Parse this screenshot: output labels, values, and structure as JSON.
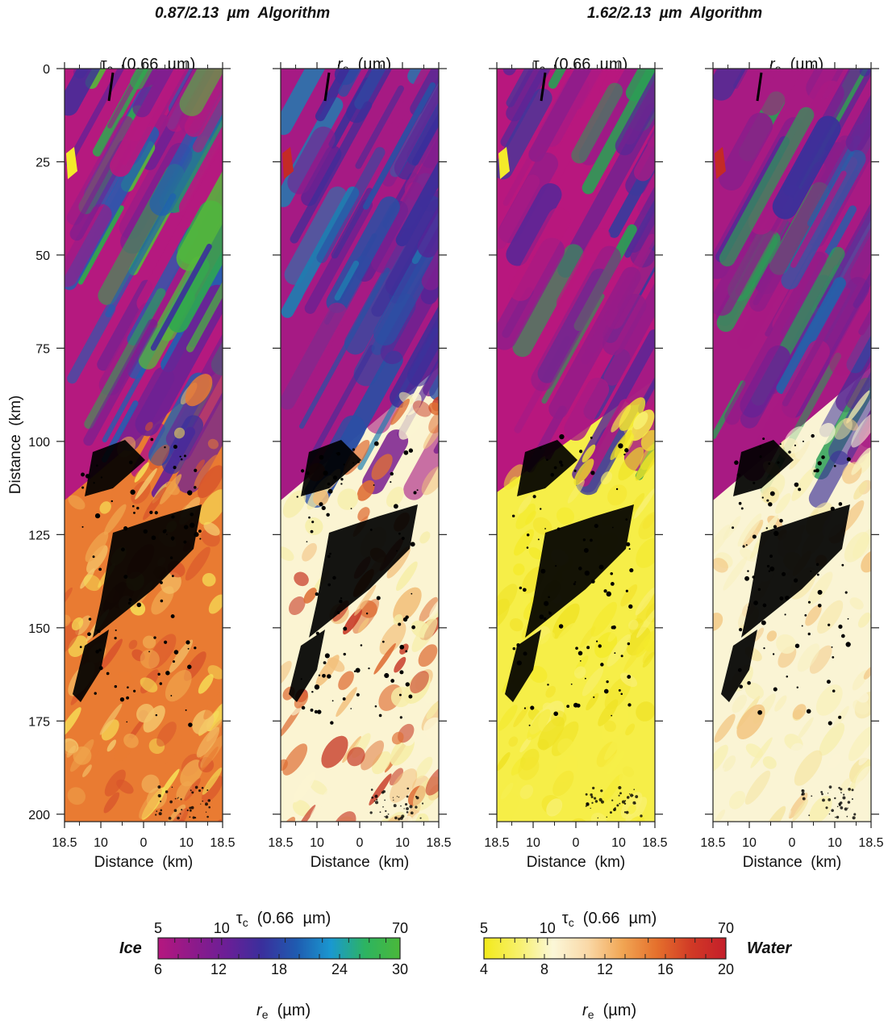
{
  "figure": {
    "left_title": "0.87/2.13  µm  Algorithm",
    "right_title": "1.62/2.13  µm  Algorithm",
    "panels": [
      {
        "id": "p1",
        "symbol": "τ",
        "sub": "c",
        "unit": "  (0.66  µm)"
      },
      {
        "id": "p2",
        "symbol": "r",
        "sub": "e",
        "unit": "  (µm)"
      },
      {
        "id": "p3",
        "symbol": "τ",
        "sub": "c",
        "unit": "  (0.66  µm)"
      },
      {
        "id": "p4",
        "symbol": "r",
        "sub": "e",
        "unit": "  (µm)"
      }
    ],
    "y_axis": {
      "label": "Distance  (km)",
      "ticks": [
        0,
        25,
        50,
        75,
        100,
        125,
        150,
        175,
        200
      ],
      "range": [
        0,
        202
      ]
    },
    "x_axis": {
      "label": "Distance  (km)",
      "tick_labels": [
        "18.5",
        "10",
        "0",
        "10",
        "18.5"
      ],
      "tick_positions": [
        -18.5,
        -10,
        0,
        10,
        18.5
      ]
    },
    "colorbar_ice": {
      "side_label": "Ice",
      "top_title_symbol": "τ",
      "top_title_sub": "c",
      "top_title_unit": "  (0.66  µm)",
      "top_ticks": [
        "5",
        "10",
        "70"
      ],
      "bottom_ticks": [
        "6",
        "12",
        "18",
        "24",
        "30"
      ],
      "bottom_title_symbol": "r",
      "bottom_title_sub": "e",
      "bottom_title_unit": "  (µm)",
      "colors": [
        "#b5177f",
        "#8e1a8a",
        "#6a1f97",
        "#3a2f9c",
        "#1f5bb0",
        "#1a98d0",
        "#2db460",
        "#4ab83a"
      ]
    },
    "colorbar_water": {
      "side_label": "Water",
      "top_title_symbol": "τ",
      "top_title_sub": "c",
      "top_title_unit": "  (0.66  µm)",
      "top_ticks": [
        "5",
        "10",
        "70"
      ],
      "bottom_ticks": [
        "4",
        "8",
        "12",
        "16",
        "20"
      ],
      "bottom_title_symbol": "r",
      "bottom_title_sub": "e",
      "bottom_title_unit": "  (µm)",
      "colors": [
        "#f2ea1a",
        "#f7f06a",
        "#fbf7d8",
        "#fad9a8",
        "#f1a654",
        "#e5702c",
        "#d13a26",
        "#c41e2a"
      ]
    },
    "palettes": {
      "ice_tau": [
        "#b8197f",
        "#8a1f8c",
        "#3d2f9b",
        "#1f60b2",
        "#2fa84f",
        "#55b83a"
      ],
      "ice_re": [
        "#a51a84",
        "#7a2190",
        "#3b2f9a",
        "#215ea8",
        "#2a9e55"
      ],
      "water_tau": [
        "#f1a24a",
        "#e36c2a",
        "#d9482a",
        "#f2d36d",
        "#f5ec35"
      ],
      "water_re": [
        "#f7f0b0",
        "#fbf4d6",
        "#f4c37e",
        "#e46a32",
        "#c83324"
      ]
    }
  }
}
